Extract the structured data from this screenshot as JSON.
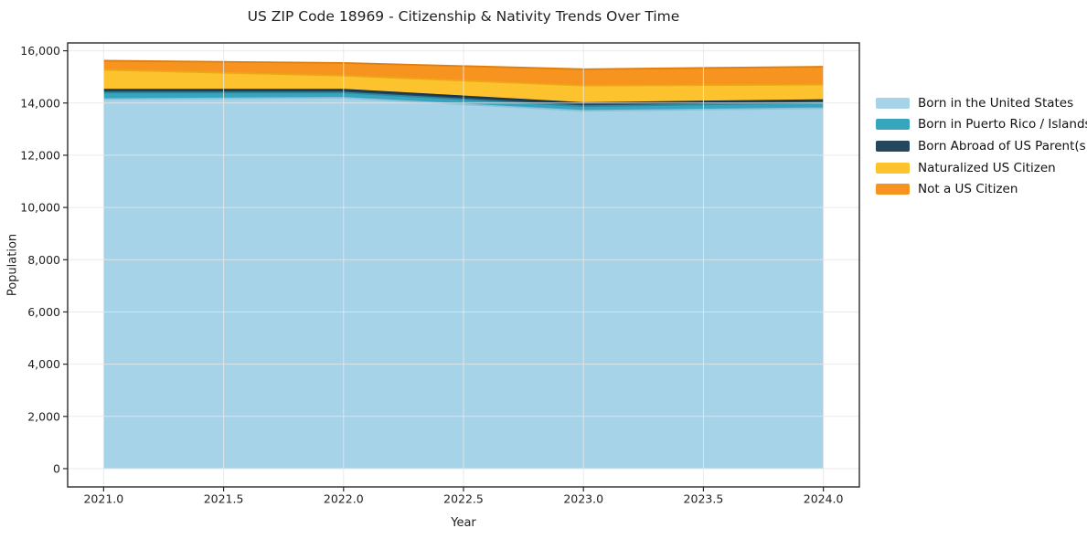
{
  "figure": {
    "background": "#ffffff",
    "text_color": "#1f1f1f",
    "axis_color": "#2a2a2a",
    "grid_color": "#e6e6e6"
  },
  "chart_data": {
    "type": "area",
    "stacked": true,
    "title": "US ZIP Code 18969 - Citizenship & Nativity Trends Over Time",
    "xlabel": "Year",
    "ylabel": "Population",
    "x": [
      2021,
      2022,
      2023,
      2024
    ],
    "series": [
      {
        "name": "Born in the United States",
        "color": "#a6d3e8",
        "edge": "#8cc1da",
        "values": [
          14150,
          14200,
          13700,
          13800
        ]
      },
      {
        "name": "Born in Puerto Rico / Islands",
        "color": "#38a5bf",
        "edge": "#2b8ba3",
        "values": [
          250,
          200,
          175,
          210
        ]
      },
      {
        "name": "Born Abroad of US Parent(s)",
        "color": "#25475d",
        "edge": "#1a3547",
        "values": [
          110,
          110,
          125,
          105
        ]
      },
      {
        "name": "Naturalized US Citizen",
        "color": "#fdc32e",
        "edge": "#eda816",
        "values": [
          760,
          535,
          665,
          585
        ]
      },
      {
        "name": "Not a US Citizen",
        "color": "#f6941f",
        "edge": "#e07d10",
        "values": [
          350,
          490,
          630,
          690
        ]
      }
    ],
    "totals": [
      15620,
      15535,
      15295,
      15390
    ],
    "xlim": [
      2020.85,
      2024.15
    ],
    "ylim": [
      -700,
      16300
    ],
    "xticks": [
      2021.0,
      2021.5,
      2022.0,
      2022.5,
      2023.0,
      2023.5,
      2024.0
    ],
    "xtick_labels": [
      "2021.0",
      "2021.5",
      "2022.0",
      "2022.5",
      "2023.0",
      "2023.5",
      "2024.0"
    ],
    "yticks": [
      0,
      2000,
      4000,
      6000,
      8000,
      10000,
      12000,
      14000,
      16000
    ],
    "ytick_labels": [
      "0",
      "2,000",
      "4,000",
      "6,000",
      "8,000",
      "10,000",
      "12,000",
      "14,000",
      "16,000"
    ],
    "grid": true,
    "legend_position": "right-outside"
  }
}
